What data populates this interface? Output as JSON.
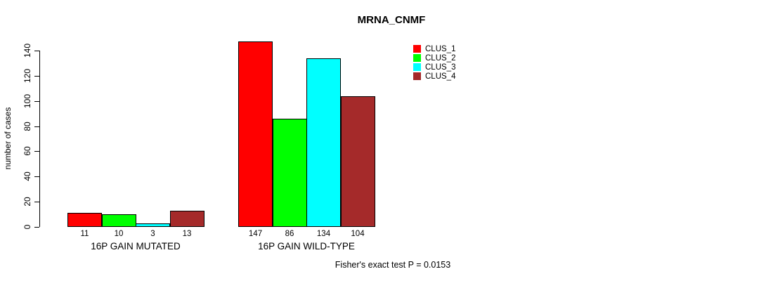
{
  "chart_data": {
    "type": "bar",
    "title": "MRNA_CNMF",
    "ylabel": "number of cases",
    "categories": [
      "16P GAIN MUTATED",
      "16P GAIN WILD-TYPE"
    ],
    "series": [
      {
        "name": "CLUS_1",
        "color": "#FF0000",
        "values": [
          11,
          147
        ]
      },
      {
        "name": "CLUS_2",
        "color": "#00FF00",
        "values": [
          10,
          86
        ]
      },
      {
        "name": "CLUS_3",
        "color": "#00FFFF",
        "values": [
          3,
          134
        ]
      },
      {
        "name": "CLUS_4",
        "color": "#A52A2A",
        "values": [
          13,
          104
        ]
      }
    ],
    "bar_value_labels": [
      [
        "11",
        "10",
        "3",
        "13"
      ],
      [
        "147",
        "86",
        "134",
        "104"
      ]
    ],
    "yticks": [
      0,
      20,
      40,
      60,
      80,
      100,
      120,
      140
    ],
    "ylim": [
      0,
      140
    ],
    "grid": false,
    "legend_position": "top-right",
    "legend_entries": [
      "CLUS_1",
      "CLUS_2",
      "CLUS_3",
      "CLUS_4"
    ],
    "annotation": "Fisher's exact test P = 0.0153"
  }
}
